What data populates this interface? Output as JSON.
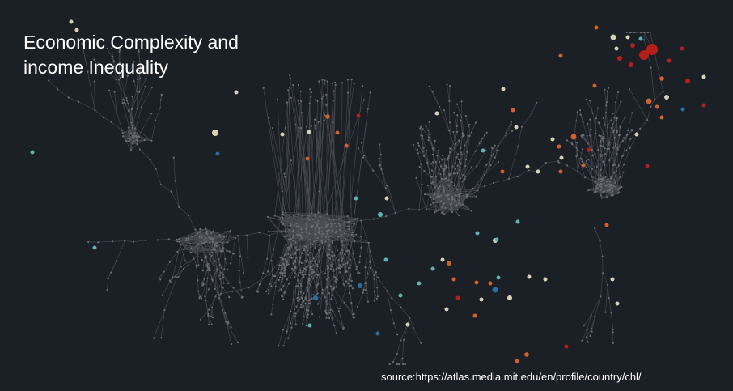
{
  "title": "Economic Complexity and\nincome Inequality",
  "source": "source:https://atlas.media.mit.edu/en/profile/country/chl/",
  "colors": {
    "background": "#1b1f26",
    "edge": "#4a4d52",
    "node": "#6a6d72",
    "highlight_beige": "#d6d3b4",
    "highlight_orange": "#d2622a",
    "highlight_red": "#b51f1a",
    "highlight_teal": "#5fb3b0",
    "highlight_blue": "#2a6ea3"
  }
}
